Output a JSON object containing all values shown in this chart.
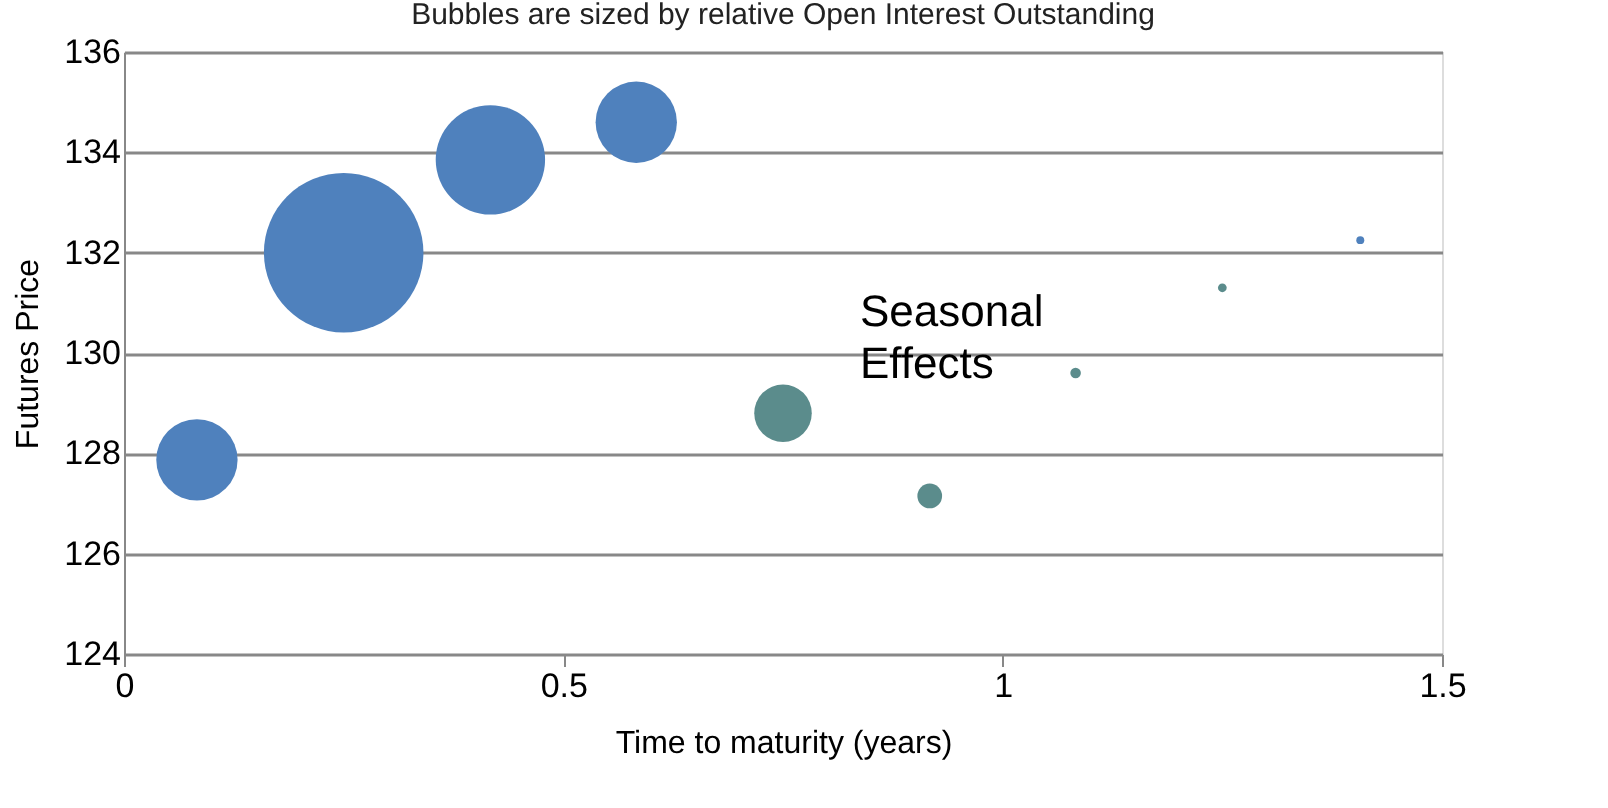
{
  "chart_data": {
    "type": "bubble",
    "title": "Bubbles are sized by relative Open Interest Outstanding",
    "xlabel": "Time to maturity (years)",
    "ylabel": "Futures Price",
    "x": [
      0.083,
      0.25,
      0.417,
      0.583,
      0.75,
      0.917,
      1.083,
      1.25,
      1.407
    ],
    "values": [
      127.87,
      132.0,
      133.85,
      134.6,
      128.8,
      127.15,
      129.6,
      131.3,
      132.25
    ],
    "sizes": [
      0.26,
      1,
      0.47,
      0.26,
      0.13,
      0.024,
      0.0044,
      0.003,
      0.0025
    ],
    "colors": [
      "#4f81bd",
      "#4f81bd",
      "#4f81bd",
      "#4f81bd",
      "#5b8c8c",
      "#5b8c8c",
      "#5b8c8c",
      "#5b8c8c",
      "#4f81bd"
    ],
    "xlim": [
      0,
      1.5
    ],
    "xticks": [
      0,
      0.5,
      1,
      1.5
    ],
    "ylim": [
      124,
      136
    ],
    "yticks": [
      124,
      126,
      128,
      130,
      132,
      134,
      136
    ],
    "grid": "y",
    "legend": false,
    "annotations": [
      "Seasonal Effects"
    ]
  }
}
